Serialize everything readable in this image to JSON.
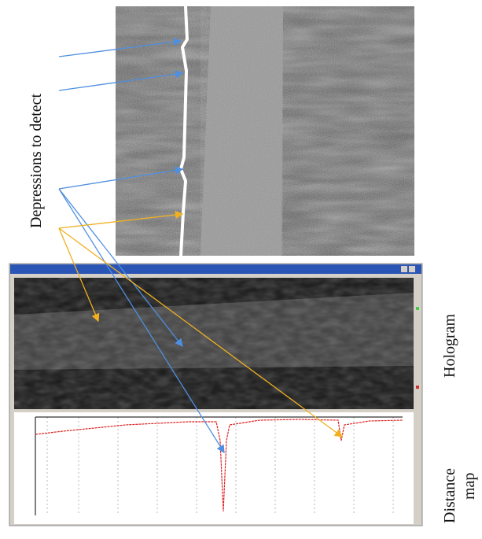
{
  "labels": {
    "left": "Depressions to detect",
    "hologram": "Hologram",
    "distance_map": [
      "Distance",
      "map"
    ]
  }
}
